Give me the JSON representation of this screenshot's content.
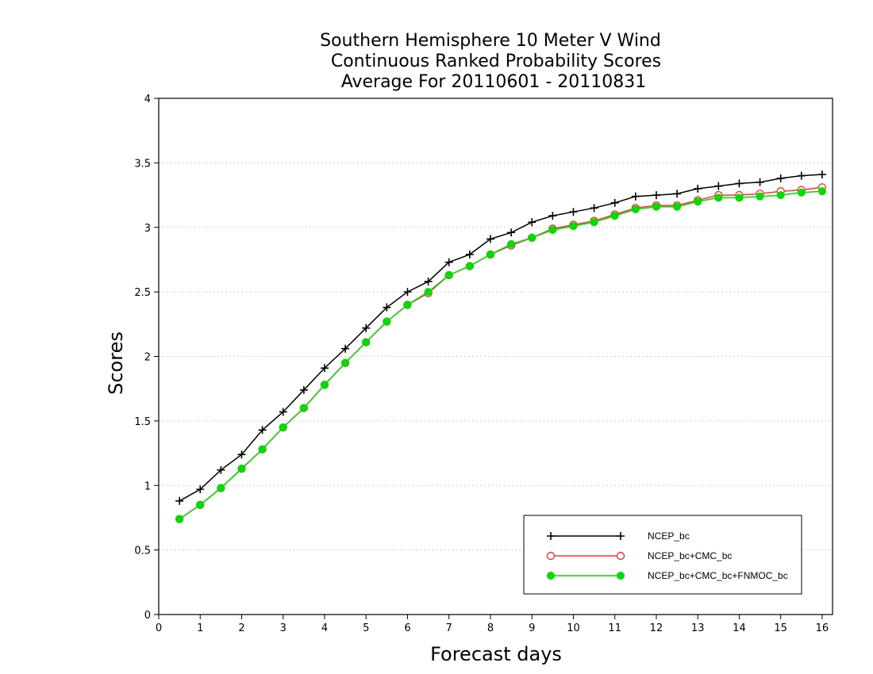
{
  "chart_data": {
    "type": "line",
    "title_lines": [
      "Southern Hemisphere 10 Meter V Wind",
      "Continuous Ranked Probability Scores",
      "Average For 20110601 - 20110831"
    ],
    "xlabel": "Forecast days",
    "ylabel": "Scores",
    "xlim": [
      0,
      16.25
    ],
    "ylim": [
      0,
      4
    ],
    "xticks": [
      "0",
      "1",
      "2",
      "3",
      "4",
      "5",
      "6",
      "7",
      "8",
      "9",
      "10",
      "11",
      "12",
      "13",
      "14",
      "15",
      "16"
    ],
    "yticks": [
      "0",
      "0.5",
      "1",
      "1.5",
      "2",
      "2.5",
      "3",
      "3.5",
      "4"
    ],
    "grid": "horizontal-dotted",
    "legend_position": "bottom-right",
    "x": [
      0.5,
      1,
      1.5,
      2,
      2.5,
      3,
      3.5,
      4,
      4.5,
      5,
      5.5,
      6,
      6.5,
      7,
      7.5,
      8,
      8.5,
      9,
      9.5,
      10,
      10.5,
      11,
      11.5,
      12,
      12.5,
      13,
      13.5,
      14,
      14.5,
      15,
      15.5,
      16
    ],
    "series": [
      {
        "name": "NCEP_bc",
        "color": "#000000",
        "marker": "plus",
        "values": [
          0.88,
          0.97,
          1.12,
          1.24,
          1.43,
          1.57,
          1.74,
          1.91,
          2.06,
          2.22,
          2.38,
          2.5,
          2.58,
          2.73,
          2.79,
          2.91,
          2.96,
          3.04,
          3.09,
          3.12,
          3.15,
          3.19,
          3.24,
          3.25,
          3.26,
          3.3,
          3.32,
          3.34,
          3.35,
          3.38,
          3.4,
          3.41
        ]
      },
      {
        "name": "NCEP_bc+CMC_bc",
        "color": "#ff3333",
        "marker": "open-circle",
        "values": [
          0.74,
          0.85,
          0.98,
          1.13,
          1.28,
          1.45,
          1.6,
          1.78,
          1.95,
          2.11,
          2.27,
          2.4,
          2.49,
          2.63,
          2.7,
          2.79,
          2.86,
          2.92,
          2.99,
          3.02,
          3.05,
          3.1,
          3.15,
          3.17,
          3.17,
          3.21,
          3.25,
          3.25,
          3.26,
          3.28,
          3.29,
          3.31
        ]
      },
      {
        "name": "NCEP_bc+CMC_bc+FNMOC_bc",
        "color": "#00dd00",
        "marker": "filled-circle",
        "values": [
          0.74,
          0.85,
          0.98,
          1.13,
          1.28,
          1.45,
          1.6,
          1.78,
          1.95,
          2.11,
          2.27,
          2.4,
          2.5,
          2.63,
          2.7,
          2.79,
          2.87,
          2.92,
          2.98,
          3.01,
          3.04,
          3.09,
          3.14,
          3.16,
          3.16,
          3.2,
          3.23,
          3.23,
          3.24,
          3.25,
          3.27,
          3.28
        ]
      }
    ]
  }
}
